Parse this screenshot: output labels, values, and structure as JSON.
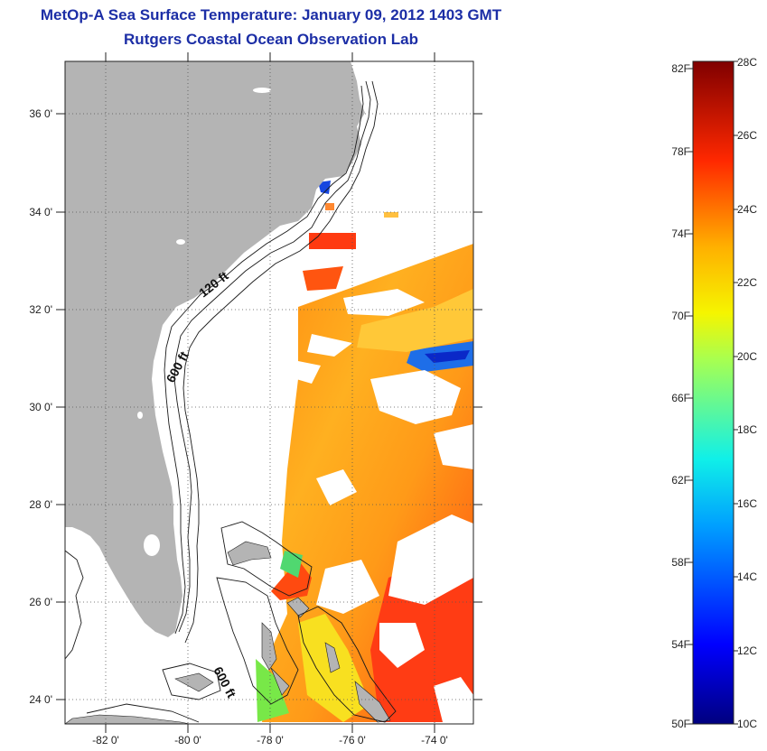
{
  "header": {
    "title": "MetOp-A Sea Surface Temperature:  January 09, 2012 1403 GMT",
    "subtitle": "Rutgers Coastal Ocean Observation Lab"
  },
  "map": {
    "lon_range": [
      -83,
      -73
    ],
    "lat_range": [
      23,
      37
    ],
    "lat_labels": [
      "36 0'",
      "34 0'",
      "32 0'",
      "30 0'",
      "28 0'",
      "26 0'",
      "24 0'"
    ],
    "lon_labels": [
      "-82 0'",
      "-80 0'",
      "-78 0'",
      "-76 0'",
      "-74 0'"
    ],
    "contour_labels": {
      "c120": "120 ft",
      "c600a": "600 ft",
      "c600b": "600 ft"
    },
    "colors": {
      "land": "#b4b4b4",
      "grid": "#555555"
    }
  },
  "colorbar": {
    "fahrenheit": [
      "82F",
      "78F",
      "74F",
      "70F",
      "66F",
      "62F",
      "58F",
      "54F",
      "50F"
    ],
    "celsius": [
      "28C",
      "26C",
      "24C",
      "22C",
      "20C",
      "18C",
      "16C",
      "14C",
      "12C",
      "10C"
    ],
    "range_c": [
      10,
      28
    ]
  }
}
